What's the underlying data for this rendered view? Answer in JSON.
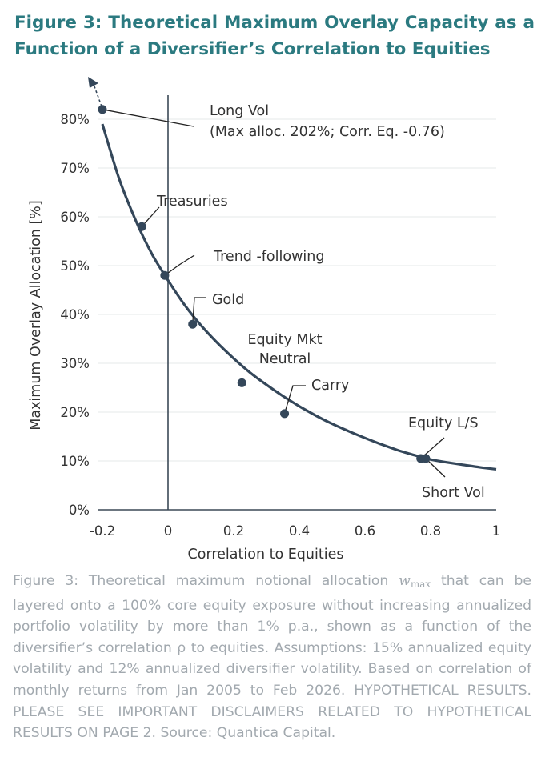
{
  "title": {
    "line1": "Figure 3: Theoretical Maximum Overlay Capacity as a",
    "line2": "Function of a Diversifier’s Correlation to Equities"
  },
  "chart_data": {
    "type": "line",
    "xlabel": "Correlation to Equities",
    "ylabel": "Maximum Overlay Allocation [%]",
    "xlim": [
      -0.2,
      1.0
    ],
    "ylim": [
      0,
      0.82
    ],
    "x_ticks": [
      "-0.2",
      "0",
      "0.2",
      "0.4",
      "0.6",
      "0.8",
      "1"
    ],
    "y_ticks": [
      "0%",
      "10%",
      "20%",
      "30%",
      "40%",
      "50%",
      "60%",
      "70%",
      "80%"
    ],
    "grid": "horizontal",
    "curve": {
      "x": [
        -0.2,
        -0.15,
        -0.1,
        -0.05,
        0.0,
        0.05,
        0.1,
        0.15,
        0.2,
        0.25,
        0.3,
        0.35,
        0.4,
        0.45,
        0.5,
        0.55,
        0.6,
        0.65,
        0.7,
        0.75,
        0.8,
        0.85,
        0.9,
        0.95,
        1.0
      ],
      "y": [
        0.79,
        0.68,
        0.595,
        0.525,
        0.47,
        0.42,
        0.378,
        0.342,
        0.31,
        0.281,
        0.256,
        0.233,
        0.212,
        0.193,
        0.176,
        0.161,
        0.147,
        0.134,
        0.122,
        0.112,
        0.103,
        0.097,
        0.092,
        0.087,
        0.083
      ]
    },
    "points": [
      {
        "label": "Long Vol",
        "sublabel": "(Max alloc. 202%; Corr. Eq. -0.76)",
        "x": -0.2,
        "y": 0.82
      },
      {
        "label": "Treasuries",
        "x": -0.08,
        "y": 0.58
      },
      {
        "label": "Trend -following",
        "x": -0.01,
        "y": 0.48
      },
      {
        "label": "Gold",
        "x": 0.075,
        "y": 0.38
      },
      {
        "label": "Equity Mkt",
        "sublabel": "Neutral",
        "x": 0.225,
        "y": 0.26
      },
      {
        "label": "Carry",
        "x": 0.355,
        "y": 0.197
      },
      {
        "label": "Equity L/S",
        "x": 0.77,
        "y": 0.105
      },
      {
        "label": "Short Vol",
        "x": 0.785,
        "y": 0.105
      }
    ],
    "colors": {
      "curve": "#34475a",
      "axis": "#3b4956",
      "grid": "#e6e8ea",
      "text": "#333333"
    }
  },
  "caption": {
    "prefix": "Figure 3: Theoretical maximum notional allocation ",
    "symbol": "w",
    "symbol_sub": "max",
    "body": " that can be layered onto a 100% core equity exposure without increasing annualized portfolio volatility by more than 1% p.a., shown as a function of the diversifier’s correlation ρ to equities. Assumptions: 15% annualized equity volatility and 12% annualized diversifier volatility. Based on correlation of monthly returns from Jan 2005 to Feb 2026. HYPOTHETICAL RESULTS. PLEASE SEE IMPORTANT DISCLAIMERS RELATED TO HYPOTHETICAL RESULTS ON PAGE 2. Source: Quantica Capital."
  }
}
